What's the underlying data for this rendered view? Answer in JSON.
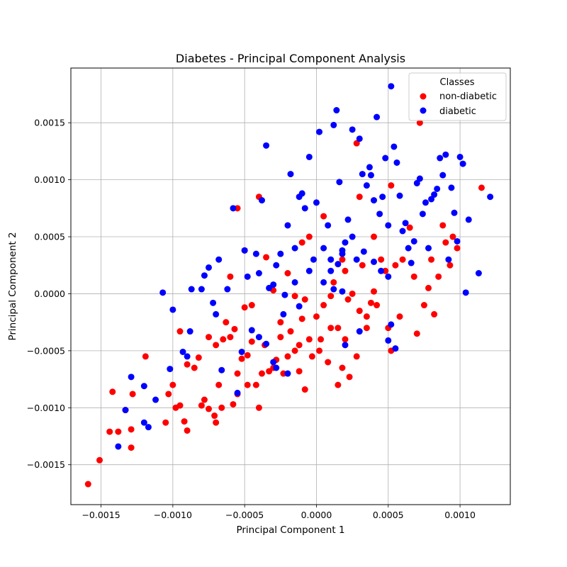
{
  "chart_data": {
    "type": "scatter",
    "title": "Diabetes - Principal Component Analysis",
    "xlabel": "Principal Component 1",
    "ylabel": "Principal Component 2",
    "xlim": [
      -0.00171,
      0.00135
    ],
    "ylim": [
      -0.00185,
      0.00198
    ],
    "xticks": [
      -0.0015,
      -0.001,
      -0.0005,
      0.0,
      0.0005,
      0.001
    ],
    "xtick_labels": [
      "−0.0015",
      "−0.0010",
      "−0.0005",
      "0.0000",
      "0.0005",
      "0.0010"
    ],
    "yticks": [
      -0.0015,
      -0.001,
      -0.0005,
      0.0,
      0.0005,
      0.001,
      0.0015
    ],
    "ytick_labels": [
      "−0.0015",
      "−0.0010",
      "−0.0005",
      "0.0000",
      "0.0005",
      "0.0010",
      "0.0015"
    ],
    "grid": true,
    "legend": {
      "title": "Classes",
      "placement": "top-right"
    },
    "series": [
      {
        "name": "non-diabetic",
        "color": "#ff0000",
        "points": [
          [
            -0.00159,
            -0.00167
          ],
          [
            -0.00151,
            -0.00146
          ],
          [
            -0.00144,
            -0.00121
          ],
          [
            -0.00138,
            -0.00121
          ],
          [
            -0.00133,
            -0.00102
          ],
          [
            -0.00142,
            -0.00086
          ],
          [
            -0.00128,
            -0.00088
          ],
          [
            -0.00129,
            -0.00135
          ],
          [
            -0.00129,
            -0.00119
          ],
          [
            -0.00119,
            -0.00055
          ],
          [
            -0.00105,
            -0.00113
          ],
          [
            -0.00103,
            -0.00088
          ],
          [
            -0.001,
            -0.0008
          ],
          [
            -0.00098,
            -0.001
          ],
          [
            -0.00095,
            -0.00098
          ],
          [
            -0.00095,
            -0.00033
          ],
          [
            -0.0009,
            -0.00062
          ],
          [
            -0.00092,
            -0.00112
          ],
          [
            -0.0009,
            -0.0012
          ],
          [
            -0.00082,
            -0.00056
          ],
          [
            -0.0008,
            -0.00098
          ],
          [
            -0.00078,
            -0.00093
          ],
          [
            -0.00075,
            -0.00101
          ],
          [
            -0.00071,
            -0.00107
          ],
          [
            -0.0007,
            -0.00113
          ],
          [
            -0.00068,
            -0.0008
          ],
          [
            -0.00066,
            -0.001
          ],
          [
            -0.00063,
            -0.00025
          ],
          [
            -0.0006,
            -0.00038
          ],
          [
            -0.00057,
            -0.00031
          ],
          [
            -0.00058,
            -0.00097
          ],
          [
            -0.00055,
            -0.00088
          ],
          [
            -0.00052,
            -0.00057
          ],
          [
            -0.0005,
            -0.00012
          ],
          [
            -0.00048,
            -0.00054
          ],
          [
            -0.00045,
            -0.00042
          ],
          [
            -0.00042,
            -0.0008
          ],
          [
            -0.0004,
            -0.001
          ],
          [
            -0.00038,
            -0.0007
          ],
          [
            -0.00036,
            -0.00045
          ],
          [
            -0.00033,
            -0.00068
          ],
          [
            -0.0003,
            -0.00065
          ],
          [
            -0.00028,
            -0.00058
          ],
          [
            -0.00025,
            -0.00038
          ],
          [
            -0.00023,
            -0.0007
          ],
          [
            -0.0002,
            -0.00055
          ],
          [
            -0.00018,
            -0.00033
          ],
          [
            -0.00015,
            -0.0005
          ],
          [
            -0.00012,
            -0.00068
          ],
          [
            -0.0001,
            -0.00022
          ],
          [
            -8e-05,
            -0.00084
          ],
          [
            -5e-05,
            -0.0004
          ],
          [
            -3e-05,
            -0.00055
          ],
          [
            0.0,
            -0.0002
          ],
          [
            2e-05,
            -0.0005
          ],
          [
            5e-05,
            -0.0001
          ],
          [
            8e-05,
            -0.0006
          ],
          [
            0.0001,
            -0.0003
          ],
          [
            0.00012,
            0.0001
          ],
          [
            0.00015,
            -0.0008
          ],
          [
            0.00018,
            -0.00065
          ],
          [
            0.0002,
            -0.0004
          ],
          [
            0.00023,
            -0.00073
          ],
          [
            0.00025,
            0.0
          ],
          [
            0.00028,
            -0.00055
          ],
          [
            0.0003,
            -0.00015
          ],
          [
            0.00032,
            0.00025
          ],
          [
            0.00035,
            -0.0002
          ],
          [
            0.00038,
            -8e-05
          ],
          [
            0.0004,
            0.0005
          ],
          [
            0.00042,
            -0.0001
          ],
          [
            0.00045,
            0.0003
          ],
          [
            0.00048,
            0.0002
          ],
          [
            0.0005,
            -0.0003
          ],
          [
            0.00052,
            -0.0005
          ],
          [
            0.00055,
            0.00025
          ],
          [
            0.00058,
            -0.0002
          ],
          [
            0.0006,
            0.0003
          ],
          [
            0.00065,
            0.00058
          ],
          [
            0.00068,
            0.00015
          ],
          [
            0.0007,
            -0.00035
          ],
          [
            0.00072,
            0.0015
          ],
          [
            0.00075,
            -0.0001
          ],
          [
            0.00078,
            5e-05
          ],
          [
            0.0008,
            0.0003
          ],
          [
            0.00082,
            -0.00018
          ],
          [
            0.00085,
            0.00015
          ],
          [
            0.00088,
            0.0006
          ],
          [
            0.0009,
            0.00045
          ],
          [
            0.00093,
            0.00025
          ],
          [
            0.00095,
            0.0005
          ],
          [
            0.00098,
            0.0004
          ],
          [
            0.00115,
            0.00093
          ],
          [
            5e-05,
            0.00068
          ],
          [
            0.00028,
            0.00132
          ],
          [
            0.0003,
            0.00085
          ],
          [
            -0.00055,
            0.00075
          ],
          [
            -0.0004,
            0.00085
          ],
          [
            -0.0006,
            0.00015
          ],
          [
            -0.0005,
            0.00038
          ],
          [
            -0.00035,
            0.00032
          ],
          [
            -0.0002,
            0.00018
          ],
          [
            -0.0001,
            0.00045
          ],
          [
            -5e-05,
            0.0005
          ],
          [
            0.0002,
            0.0002
          ],
          [
            0.0001,
            -2e-05
          ],
          [
            -0.00015,
            -2e-05
          ],
          [
            -0.0003,
            3e-05
          ],
          [
            -0.00045,
            -0.0001
          ],
          [
            -0.00075,
            -0.00038
          ],
          [
            -0.00085,
            -0.00065
          ],
          [
            -0.0007,
            -0.00045
          ],
          [
            -0.00065,
            -0.0004
          ],
          [
            -0.00048,
            -0.0008
          ],
          [
            -0.00055,
            -0.0007
          ],
          [
            0.00015,
            -0.0003
          ],
          [
            0.00022,
            -5e-05
          ],
          [
            0.00035,
            -0.0003
          ],
          [
            0.0004,
            2e-05
          ],
          [
            0.00018,
            0.0003
          ],
          [
            -0.00025,
            -0.00025
          ],
          [
            -0.00012,
            -0.00045
          ],
          [
            3e-05,
            -0.0004
          ],
          [
            -8e-05,
            -5e-05
          ],
          [
            0.00052,
            0.00095
          ]
        ]
      },
      {
        "name": "diabetic",
        "color": "#0000ff",
        "points": [
          [
            -0.00138,
            -0.00134
          ],
          [
            -0.00133,
            -0.00102
          ],
          [
            -0.00129,
            -0.00073
          ],
          [
            -0.0012,
            -0.00081
          ],
          [
            -0.0012,
            -0.00113
          ],
          [
            -0.00117,
            -0.00117
          ],
          [
            -0.00112,
            -0.00093
          ],
          [
            -0.00107,
            1e-05
          ],
          [
            -0.00102,
            -0.00066
          ],
          [
            -0.001,
            -0.00014
          ],
          [
            -0.00093,
            -0.00051
          ],
          [
            -0.0009,
            -0.00055
          ],
          [
            -0.00088,
            -0.00033
          ],
          [
            -0.00087,
            4e-05
          ],
          [
            -0.0008,
            4e-05
          ],
          [
            -0.00078,
            0.00016
          ],
          [
            -0.00075,
            0.00023
          ],
          [
            -0.00072,
            -8e-05
          ],
          [
            -0.0007,
            -0.00018
          ],
          [
            -0.00068,
            0.0003
          ],
          [
            -0.00066,
            -0.00067
          ],
          [
            -0.00062,
            4e-05
          ],
          [
            -0.00058,
            0.00075
          ],
          [
            -0.00055,
            -0.00087
          ],
          [
            -0.00052,
            -0.00051
          ],
          [
            -0.0005,
            0.00038
          ],
          [
            -0.00048,
            0.00015
          ],
          [
            -0.00045,
            -0.00032
          ],
          [
            -0.00042,
            0.00035
          ],
          [
            -0.0004,
            0.00018
          ],
          [
            -0.00038,
            0.00082
          ],
          [
            -0.00035,
            0.0013
          ],
          [
            -0.00033,
            5e-05
          ],
          [
            -0.0003,
            -0.0006
          ],
          [
            -0.00028,
            0.00025
          ],
          [
            -0.00025,
            0.00035
          ],
          [
            -0.00023,
            -0.00018
          ],
          [
            -0.0002,
            0.0006
          ],
          [
            -0.00018,
            0.00105
          ],
          [
            -0.00015,
            0.0001
          ],
          [
            -0.00012,
            0.00085
          ],
          [
            -0.0001,
            0.00088
          ],
          [
            -8e-05,
            0.00075
          ],
          [
            -5e-05,
            0.0012
          ],
          [
            -2e-05,
            0.0003
          ],
          [
            0.0,
            0.0008
          ],
          [
            2e-05,
            0.00142
          ],
          [
            5e-05,
            0.0004
          ],
          [
            8e-05,
            0.0006
          ],
          [
            0.0001,
            0.0002
          ],
          [
            0.00012,
            0.00148
          ],
          [
            0.00014,
            0.00161
          ],
          [
            0.00016,
            0.00098
          ],
          [
            0.00018,
            0.00035
          ],
          [
            0.0002,
            0.00045
          ],
          [
            0.00022,
            0.00065
          ],
          [
            0.00025,
            0.00144
          ],
          [
            0.00028,
            0.0003
          ],
          [
            0.0003,
            0.00136
          ],
          [
            0.00032,
            0.00105
          ],
          [
            0.00035,
            0.00095
          ],
          [
            0.00037,
            0.00111
          ],
          [
            0.00038,
            0.00104
          ],
          [
            0.0004,
            0.00082
          ],
          [
            0.00042,
            0.00155
          ],
          [
            0.00044,
            0.0007
          ],
          [
            0.00046,
            0.00085
          ],
          [
            0.00048,
            0.00119
          ],
          [
            0.0005,
            0.0006
          ],
          [
            0.00052,
            0.00182
          ],
          [
            0.00054,
            0.00129
          ],
          [
            0.00056,
            0.00115
          ],
          [
            0.00058,
            0.00086
          ],
          [
            0.0006,
            0.00055
          ],
          [
            0.00062,
            0.00062
          ],
          [
            0.00064,
            0.0004
          ],
          [
            0.00066,
            0.00027
          ],
          [
            0.00068,
            0.00046
          ],
          [
            0.0007,
            0.00097
          ],
          [
            0.00072,
            0.00101
          ],
          [
            0.00074,
            0.0007
          ],
          [
            0.00076,
            0.0008
          ],
          [
            0.00078,
            0.0004
          ],
          [
            0.0008,
            0.00083
          ],
          [
            0.00082,
            0.00087
          ],
          [
            0.00084,
            0.00092
          ],
          [
            0.00086,
            0.00119
          ],
          [
            0.00088,
            0.00104
          ],
          [
            0.0009,
            0.00122
          ],
          [
            0.00092,
            0.0003
          ],
          [
            0.00094,
            0.00093
          ],
          [
            0.00096,
            0.00071
          ],
          [
            0.00098,
            0.00046
          ],
          [
            0.001,
            0.0012
          ],
          [
            0.00102,
            0.00114
          ],
          [
            0.00104,
            1e-05
          ],
          [
            0.00106,
            0.00065
          ],
          [
            0.00113,
            0.00018
          ],
          [
            0.00121,
            0.00085
          ],
          [
            0.0005,
            -0.00041
          ],
          [
            0.00055,
            -0.00048
          ],
          [
            0.00052,
            -0.00027
          ],
          [
            0.0002,
            -0.00045
          ],
          [
            0.0003,
            -0.00033
          ],
          [
            -0.00035,
            -0.00044
          ],
          [
            -0.00028,
            -0.00065
          ],
          [
            -0.0002,
            -0.0007
          ],
          [
            0.0001,
            0.0003
          ],
          [
            0.00015,
            0.00026
          ],
          [
            0.00018,
            0.00038
          ],
          [
            0.00025,
            0.0005
          ],
          [
            0.00033,
            0.00037
          ],
          [
            0.0004,
            0.00028
          ],
          [
            0.00045,
            0.0002
          ],
          [
            0.0005,
            0.00015
          ],
          [
            -0.00015,
            0.0004
          ],
          [
            -5e-05,
            0.0002
          ],
          [
            5e-05,
            0.0001
          ],
          [
            0.00012,
            4e-05
          ],
          [
            0.00018,
            2e-05
          ],
          [
            -0.0004,
            -0.00038
          ],
          [
            -0.0003,
            8e-05
          ],
          [
            -0.00022,
            -1e-05
          ],
          [
            -0.00012,
            -0.00011
          ]
        ]
      }
    ]
  }
}
